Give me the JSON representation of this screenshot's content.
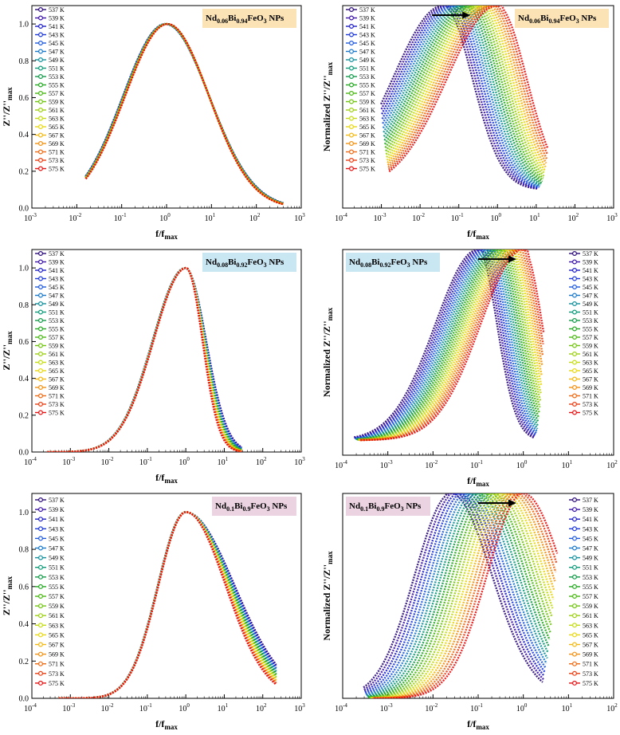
{
  "figure": {
    "temperatures": [
      "537 K",
      "539 K",
      "541 K",
      "543 K",
      "545 K",
      "547 K",
      "549 K",
      "551 K",
      "553 K",
      "555 K",
      "557 K",
      "559 K",
      "561 K",
      "563 K",
      "565 K",
      "567 K",
      "569 K",
      "571 K",
      "573 K",
      "575 K"
    ],
    "series_colors": [
      "#2a0a7a",
      "#3a12a8",
      "#1c1cc8",
      "#1c38dc",
      "#1d58e0",
      "#1878cc",
      "#10909c",
      "#0a9a78",
      "#109a48",
      "#22a81e",
      "#48b812",
      "#70c40e",
      "#9cd010",
      "#c4dc10",
      "#e8d810",
      "#f4b810",
      "#f49010",
      "#f06810",
      "#ec3c10",
      "#e81010"
    ]
  },
  "chart_data": [
    {
      "panel": "a",
      "type": "line",
      "title_parts": [
        "Nd",
        "0.06",
        "Bi",
        "0.94",
        "FeO",
        "3",
        " NPs"
      ],
      "title_bg": "#fbe3b6",
      "xlabel": [
        "f/f",
        "max"
      ],
      "ylabel": [
        "Z''/Z''",
        "max"
      ],
      "xscale": "log",
      "xlim": [
        -3,
        3
      ],
      "ylim": [
        0,
        1.1
      ],
      "y_ticks": [
        0.0,
        0.2,
        0.4,
        0.6,
        0.8,
        1.0
      ],
      "y_tick_labels": [
        "0.0",
        "0.2",
        "0.4",
        "0.6",
        "0.8",
        "1.0"
      ],
      "legend_position": "top-left",
      "title_position": "top-right",
      "arrow": false,
      "curve": {
        "x_range": [
          -1.8,
          2.6
        ],
        "left_width": 0.95,
        "right_width": 0.95,
        "peak": 1.0,
        "shift_spread": 0.12,
        "right_width_spread": 0.05
      }
    },
    {
      "panel": "b",
      "type": "line",
      "title_parts": [
        "Nd",
        "0.06",
        "Bi",
        "0.94",
        "FeO",
        "3",
        " NPs"
      ],
      "title_bg": "#fbe3b6",
      "xlabel": [
        "f/f",
        "max"
      ],
      "ylabel": [
        "Normalized Z''/Z''",
        "max"
      ],
      "xscale": "log",
      "xlim": [
        -4,
        3
      ],
      "ylim": [
        0,
        1.1
      ],
      "y_ticks": [],
      "y_tick_labels": [],
      "legend_position": "top-left",
      "title_position": "top-right",
      "arrow": true,
      "curve": {
        "x_range": [
          -2.8,
          1.3
        ],
        "left_width": 1.3,
        "right_width": 0.75,
        "peak": 1.1,
        "shift_start": -1.4,
        "shift_end": 0.0,
        "floor": 0.1
      }
    },
    {
      "panel": "c",
      "type": "line",
      "title_parts": [
        "Nd",
        "0.08",
        "Bi",
        "0.92",
        "FeO",
        "3",
        " NPs"
      ],
      "title_bg": "#c9e6f3",
      "xlabel": [
        "f/f",
        "max"
      ],
      "ylabel": [
        "Z''/Z''",
        "max"
      ],
      "xscale": "log",
      "xlim": [
        -4,
        3
      ],
      "ylim": [
        0,
        1.1
      ],
      "y_ticks": [
        0.0,
        0.2,
        0.4,
        0.6,
        0.8,
        1.0
      ],
      "y_tick_labels": [
        "0.0",
        "0.2",
        "0.4",
        "0.6",
        "0.8",
        "1.0"
      ],
      "legend_position": "top-left",
      "title_position": "top-right",
      "arrow": false,
      "curve": {
        "x_range": [
          -3.6,
          1.45
        ],
        "left_width": 0.85,
        "right_width": 0.48,
        "peak": 1.0,
        "shift_spread": 0.06,
        "right_width_spread": 0.12
      }
    },
    {
      "panel": "d",
      "type": "line",
      "title_parts": [
        "Nd",
        "0.08",
        "Bi",
        "0.92",
        "FeO",
        "3",
        " NPs"
      ],
      "title_bg": "#c9e6f3",
      "xlabel": [
        "f/f",
        "max"
      ],
      "ylabel": [
        "Normalized Z''/Z''",
        "max"
      ],
      "xscale": "log",
      "xlim": [
        -4,
        2
      ],
      "ylim": [
        0,
        1.1
      ],
      "y_ticks": [],
      "y_tick_labels": [],
      "legend_position": "top-right",
      "title_position": "top-left",
      "arrow": true,
      "curve": {
        "x_range": [
          -3.6,
          0.45
        ],
        "left_width": 0.95,
        "right_width": 0.42,
        "peak": 1.1,
        "shift_start": -1.0,
        "shift_end": 0.0,
        "floor": 0.08
      }
    },
    {
      "panel": "e",
      "type": "line",
      "title_parts": [
        "Nd",
        "0.1",
        "Bi",
        "0.9",
        "FeO",
        "3",
        " NPs"
      ],
      "title_bg": "#ebd3e1",
      "xlabel": [
        "f/f",
        "max"
      ],
      "ylabel": [
        "Z''/Z''",
        "max"
      ],
      "xscale": "log",
      "xlim": [
        -4,
        3
      ],
      "ylim": [
        0,
        1.1
      ],
      "y_ticks": [
        0.0,
        0.2,
        0.4,
        0.6,
        0.8,
        1.0
      ],
      "y_tick_labels": [
        "0.0",
        "0.2",
        "0.4",
        "0.6",
        "0.8",
        "1.0"
      ],
      "legend_position": "top-left",
      "title_position": "top-right",
      "arrow": false,
      "curve": {
        "x_range": [
          -3.3,
          2.35
        ],
        "left_width": 0.72,
        "right_width": 1.15,
        "peak": 1.0,
        "shift_spread": 0.04,
        "right_width_spread": 0.25
      }
    },
    {
      "panel": "f",
      "type": "line",
      "title_parts": [
        "Nd",
        "0.1",
        "Bi",
        "0.9",
        "FeO",
        "3",
        " NPs"
      ],
      "title_bg": "#ebd3e1",
      "xlabel": [
        "f/f",
        "max"
      ],
      "ylabel": [
        "Normalized Z''/Z''",
        "max"
      ],
      "xscale": "log",
      "xlim": [
        -4,
        2
      ],
      "ylim": [
        0,
        1.1
      ],
      "y_ticks": [],
      "y_tick_labels": [],
      "legend_position": "top-right",
      "title_position": "top-left",
      "arrow": true,
      "curve": {
        "x_range": [
          -3.3,
          0.75
        ],
        "left_width": 0.8,
        "right_width": 0.9,
        "peak": 1.1,
        "shift_start": -1.6,
        "shift_end": 0.0,
        "floor": 0.0
      }
    }
  ]
}
